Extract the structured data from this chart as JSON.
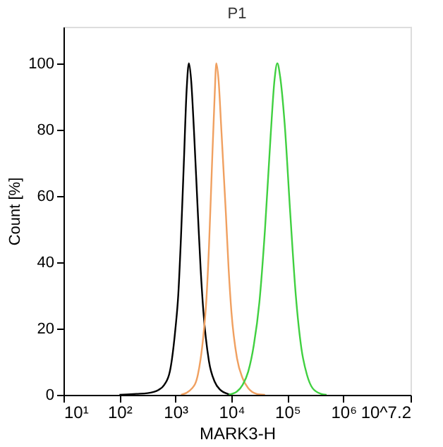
{
  "chart_data": {
    "type": "line",
    "title": "P1",
    "xlabel": "MARK3-H",
    "ylabel": "Count [%]",
    "log": "x",
    "grid": false,
    "marker": "none",
    "line_style": "solid",
    "xlim": [
      10,
      15848932
    ],
    "xticks": [
      {
        "value": 10,
        "label": "10¹"
      },
      {
        "value": 100,
        "label": "10²"
      },
      {
        "value": 1000,
        "label": "10³"
      },
      {
        "value": 10000,
        "label": "10⁴"
      },
      {
        "value": 100000,
        "label": "10⁵"
      },
      {
        "value": 1000000,
        "label": "10⁶"
      },
      {
        "value": 15848932,
        "label": "10^7.2"
      }
    ],
    "ylim": [
      0,
      111
    ],
    "yticks": [
      0,
      20,
      40,
      60,
      80,
      100
    ],
    "series": [
      {
        "color": "#000000",
        "x": [
          100,
          200,
          316,
          501,
          631,
          794,
          1000,
          1122,
          1259,
          1413,
          1585,
          1738,
          1905,
          2138,
          2512,
          2818,
          3162,
          3981,
          5012,
          6310,
          8913,
          10000
        ],
        "values": [
          0,
          0.3,
          0.5,
          1.5,
          3,
          7,
          20,
          30,
          48,
          70,
          92,
          100,
          95,
          80,
          55,
          38,
          25,
          10,
          4,
          1.5,
          0.2,
          0
        ]
      },
      {
        "color": "#f0a060",
        "x": [
          1259,
          1995,
          2512,
          3162,
          3548,
          3981,
          4467,
          5012,
          5370,
          5888,
          6607,
          7943,
          8913,
          10000,
          12589,
          15849,
          19953,
          28184,
          39811
        ],
        "values": [
          0,
          2,
          6,
          18,
          28,
          45,
          68,
          90,
          100,
          95,
          80,
          55,
          38,
          25,
          11,
          5,
          2,
          0.3,
          0
        ]
      },
      {
        "color": "#40d040",
        "x": [
          8913,
          12589,
          15849,
          19953,
          25119,
          31623,
          39811,
          50119,
          58884,
          66069,
          74131,
          89125,
          112202,
          141254,
          177828,
          223872,
          281838,
          398107,
          501187
        ],
        "values": [
          0,
          1,
          3,
          7,
          15,
          28,
          50,
          78,
          95,
          100,
          96,
          82,
          55,
          30,
          14,
          6,
          2,
          0.3,
          0
        ]
      }
    ]
  }
}
